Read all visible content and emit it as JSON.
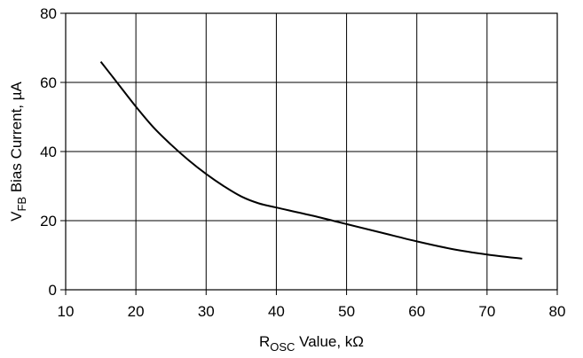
{
  "chart_data": {
    "type": "line",
    "title": "",
    "xlabel": {
      "main": "R",
      "sub": "OSC",
      "rest": " Value, kΩ"
    },
    "ylabel": {
      "main": "V",
      "sub": "FB",
      "rest": " Bias Current, µA"
    },
    "xlim": [
      10,
      80
    ],
    "ylim": [
      0,
      80
    ],
    "xticks": [
      10,
      20,
      30,
      40,
      50,
      60,
      70,
      80
    ],
    "yticks": [
      0,
      20,
      40,
      60,
      80
    ],
    "grid": true,
    "series": [
      {
        "x": [
          15,
          17.5,
          20,
          22.5,
          25,
          27.5,
          30,
          32.5,
          35,
          37.5,
          40,
          45,
          50,
          55,
          60,
          65,
          70,
          75
        ],
        "y": [
          66,
          59.5,
          53,
          47,
          42,
          37.5,
          33.5,
          30,
          27,
          25,
          23.8,
          21.5,
          19,
          16.5,
          14,
          11.8,
          10.2,
          9
        ]
      }
    ]
  }
}
